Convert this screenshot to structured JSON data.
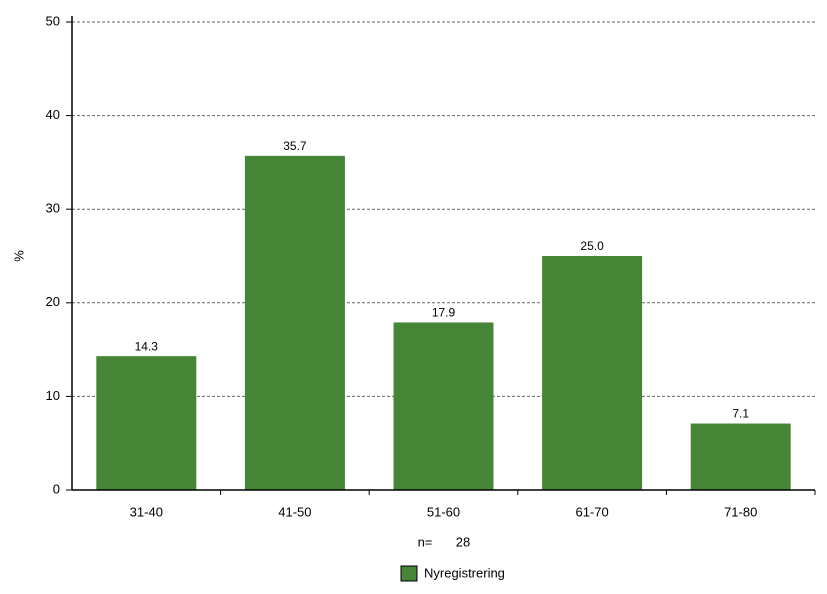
{
  "chart_data": {
    "type": "bar",
    "y_label": "%",
    "categories": [
      "31-40",
      "41-50",
      "51-60",
      "61-70",
      "71-80"
    ],
    "series": [
      {
        "name": "Nyregistrering",
        "color": "#468536",
        "values": [
          14.3,
          35.7,
          17.9,
          25,
          7.1
        ],
        "value_labels": [
          "14.3",
          "35.7",
          "17.9",
          "25.0",
          "7.1"
        ]
      }
    ],
    "ylim": [
      0,
      50
    ],
    "yticks": [
      0,
      10,
      20,
      30,
      40,
      50
    ],
    "grid": true,
    "n_label": "n=",
    "n": 28
  }
}
